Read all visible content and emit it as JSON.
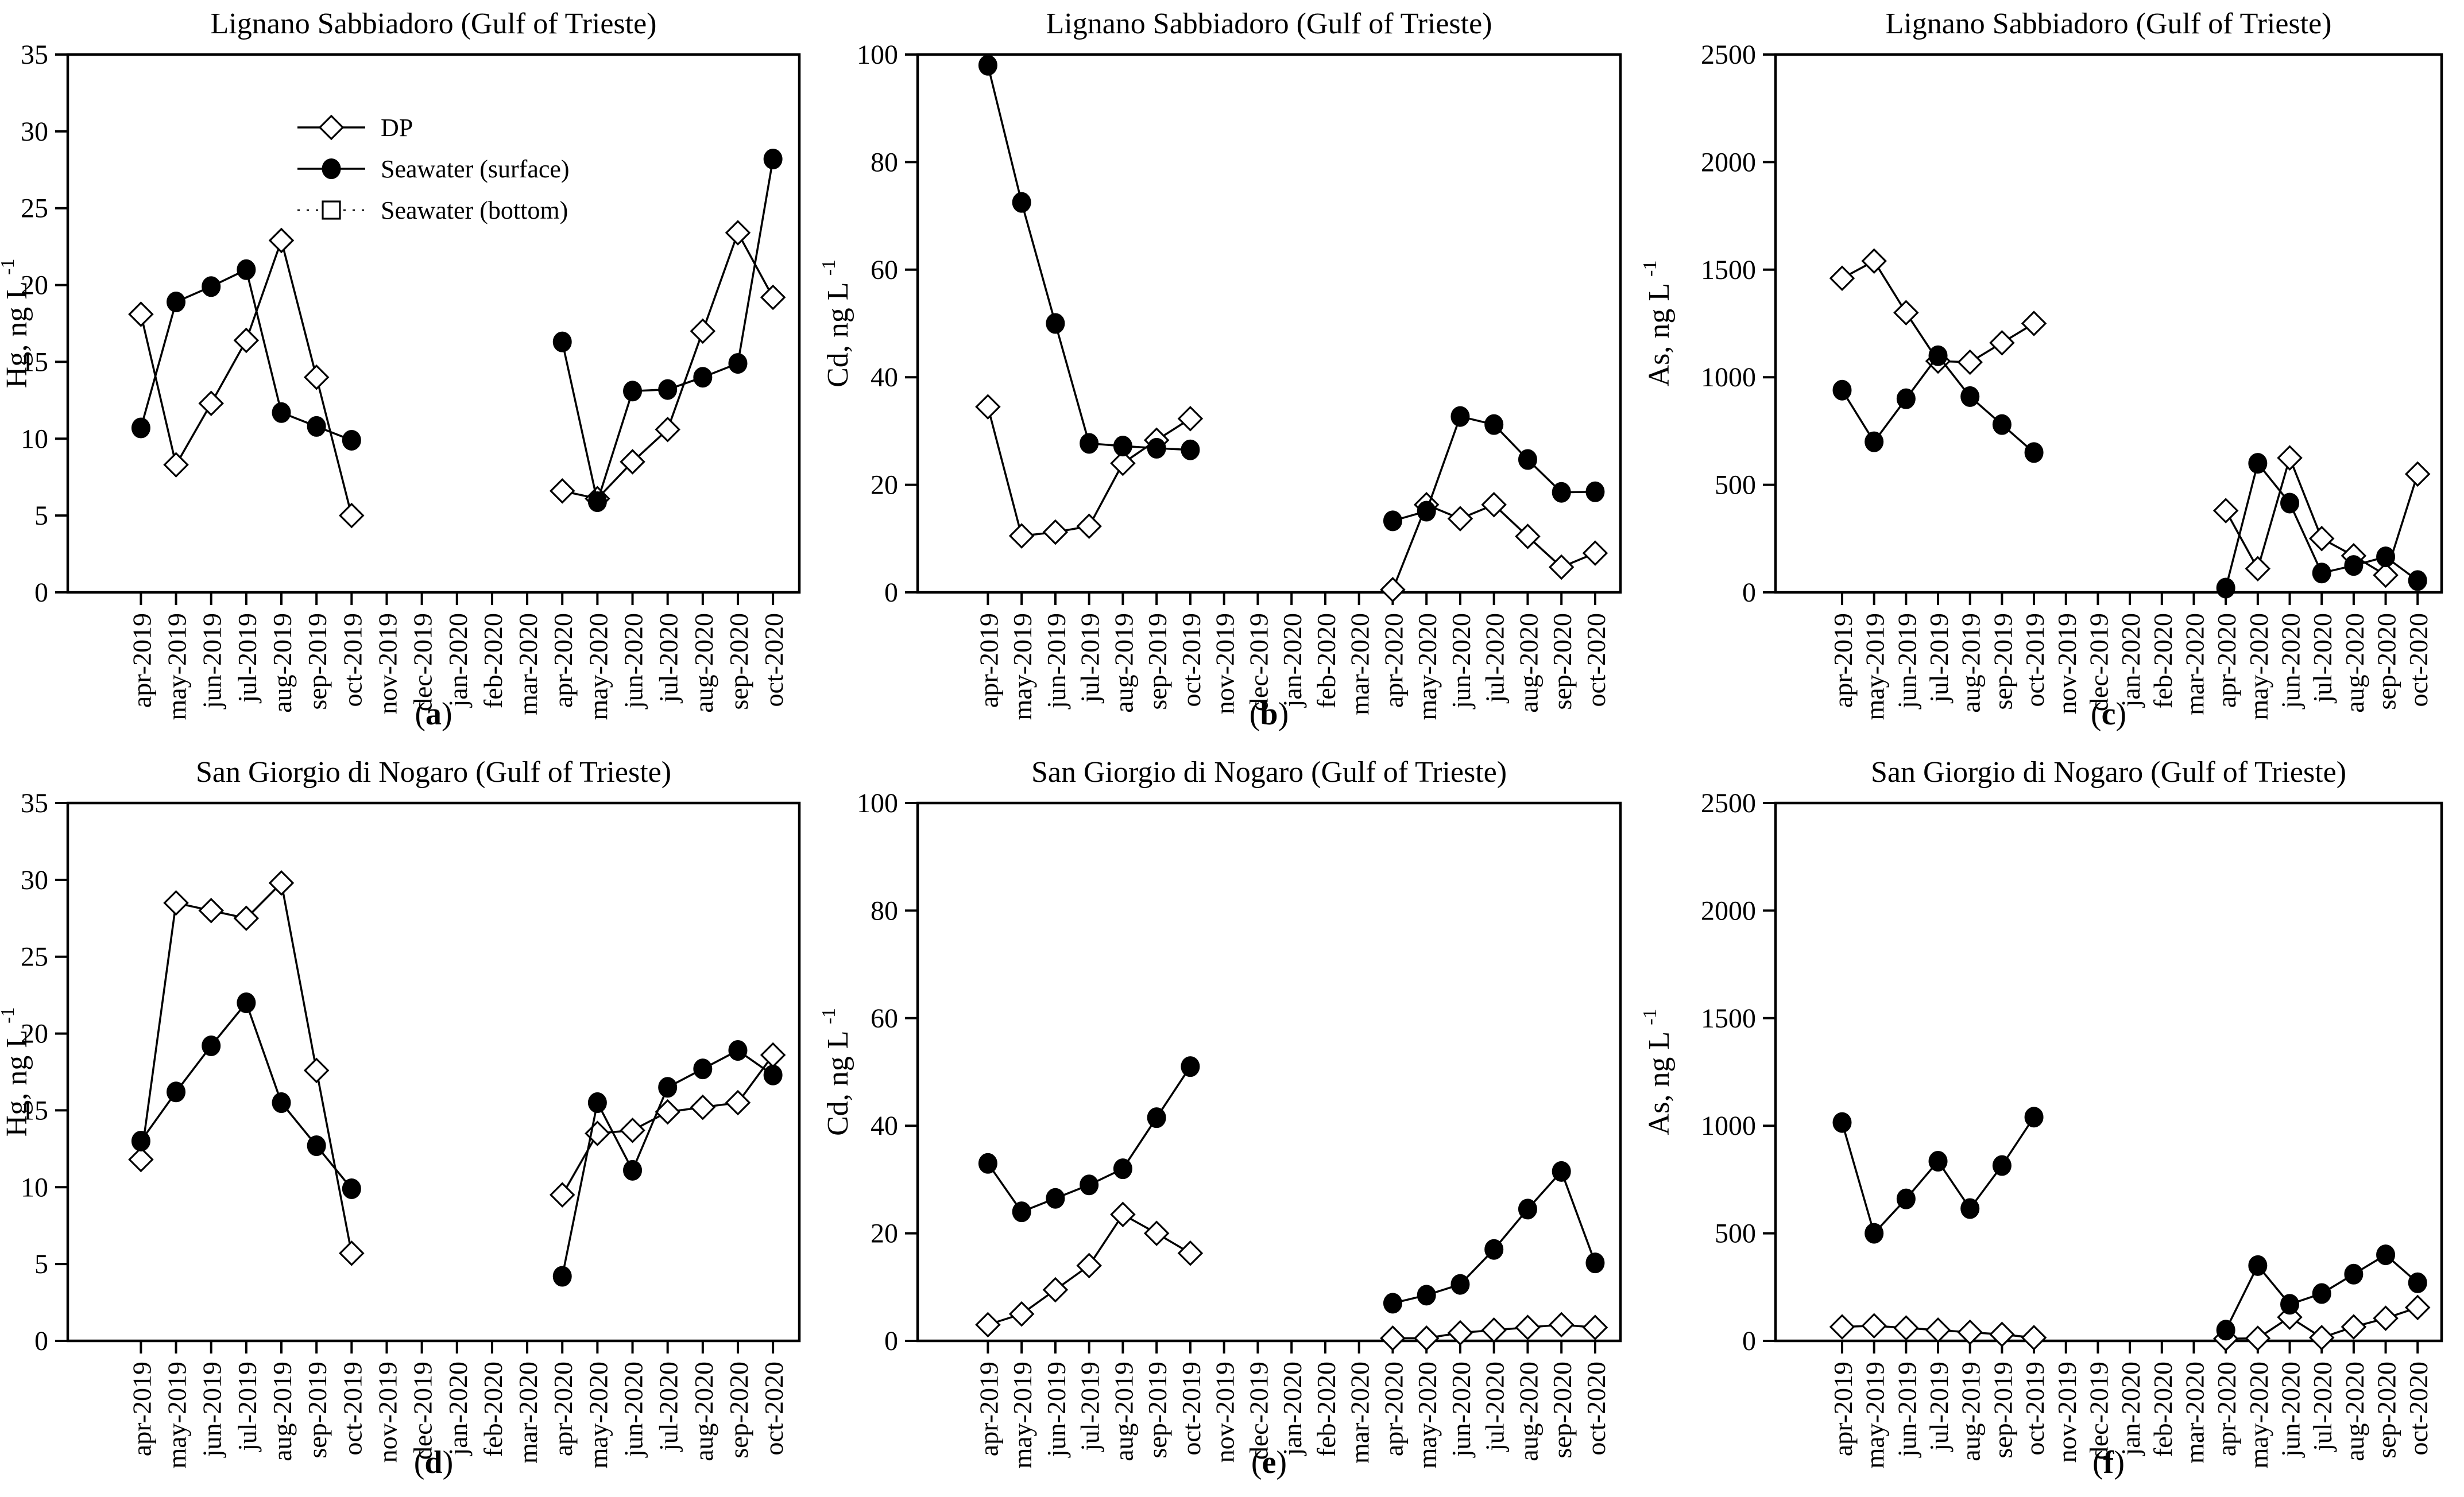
{
  "page": {
    "background": "#ffffff",
    "foreground": "#000000"
  },
  "punctuation": {
    "paren_open": "(",
    "paren_close": ")"
  },
  "legend": {
    "items": [
      {
        "label": "DP",
        "marker": "open-diamond",
        "line": "solid"
      },
      {
        "label": "Seawater (surface)",
        "marker": "filled-circle",
        "line": "solid"
      },
      {
        "label": "Seawater (bottom)",
        "marker": "open-square",
        "line": "dotted"
      }
    ]
  },
  "chart_data": [
    {
      "id": "a",
      "type": "line",
      "letter": "a",
      "title": "Lignano Sabbiadoro (Gulf of Trieste)",
      "xlabel": "",
      "ylabel": "Hg, ng L",
      "ylabel_sup": "-1",
      "ylim": [
        0,
        35
      ],
      "yticks": [
        "0",
        "5",
        "10",
        "15",
        "20",
        "25",
        "30",
        "35"
      ],
      "grid": false,
      "legend_visible": true,
      "margin_left": 118,
      "categories": [
        "apr-2019",
        "may-2019",
        "jun-2019",
        "jul-2019",
        "aug-2019",
        "sep-2019",
        "oct-2019",
        "nov-2019",
        "dec-2019",
        "jan-2020",
        "feb-2020",
        "mar-2020",
        "apr-2020",
        "may-2020",
        "jun-2020",
        "jul-2020",
        "aug-2020",
        "sep-2020",
        "oct-2020"
      ],
      "series": [
        {
          "name": "DP",
          "marker": "open-diamond",
          "line": "solid",
          "values": [
            18.1,
            8.3,
            12.3,
            16.4,
            22.9,
            14.0,
            5.0,
            null,
            null,
            null,
            null,
            null,
            6.6,
            6.1,
            8.5,
            10.6,
            17.0,
            23.4,
            19.2
          ]
        },
        {
          "name": "Seawater (surface)",
          "marker": "filled-circle",
          "line": "solid",
          "values": [
            10.7,
            18.9,
            19.9,
            21.0,
            11.7,
            10.8,
            9.9,
            null,
            null,
            null,
            null,
            null,
            16.3,
            5.9,
            13.1,
            13.2,
            14.0,
            14.9,
            28.2
          ]
        },
        {
          "name": "Seawater (bottom)",
          "marker": "open-square",
          "line": "dotted",
          "values": [
            null,
            null,
            null,
            null,
            null,
            null,
            null,
            null,
            null,
            null,
            null,
            null,
            null,
            null,
            null,
            null,
            null,
            null,
            null
          ]
        }
      ]
    },
    {
      "id": "b",
      "type": "line",
      "letter": "b",
      "title": "Lignano Sabbiadoro (Gulf of Trieste)",
      "xlabel": "",
      "ylabel": "Cd, ng L",
      "ylabel_sup": "-1",
      "ylim": [
        0,
        100
      ],
      "yticks": [
        "0",
        "20",
        "40",
        "60",
        "80",
        "100"
      ],
      "grid": false,
      "legend_visible": false,
      "margin_left": 168,
      "categories": [
        "apr-2019",
        "may-2019",
        "jun-2019",
        "jul-2019",
        "aug-2019",
        "sep-2019",
        "oct-2019",
        "nov-2019",
        "dec-2019",
        "jan-2020",
        "feb-2020",
        "mar-2020",
        "apr-2020",
        "may-2020",
        "jun-2020",
        "jul-2020",
        "aug-2020",
        "sep-2020",
        "oct-2020"
      ],
      "series": [
        {
          "name": "DP",
          "marker": "open-diamond",
          "line": "solid",
          "values": [
            34.5,
            10.5,
            11.2,
            12.3,
            24.0,
            28.3,
            32.3,
            null,
            null,
            null,
            null,
            null,
            0.5,
            16.3,
            13.7,
            16.3,
            10.4,
            4.7,
            7.3
          ]
        },
        {
          "name": "Seawater (surface)",
          "marker": "filled-circle",
          "line": "solid",
          "values": [
            98.0,
            72.5,
            50.0,
            27.7,
            27.2,
            26.8,
            26.5,
            null,
            null,
            null,
            null,
            null,
            13.3,
            15.1,
            32.7,
            31.2,
            24.7,
            18.6,
            18.7
          ]
        },
        {
          "name": "Seawater (bottom)",
          "marker": "open-square",
          "line": "dotted",
          "values": [
            null,
            null,
            null,
            null,
            null,
            null,
            null,
            null,
            null,
            null,
            null,
            null,
            null,
            null,
            null,
            null,
            null,
            null,
            null
          ]
        }
      ]
    },
    {
      "id": "c",
      "type": "line",
      "letter": "c",
      "title": "Lignano Sabbiadoro (Gulf of Trieste)",
      "xlabel": "",
      "ylabel": "As, ng L",
      "ylabel_sup": "-1",
      "ylim": [
        0,
        2500
      ],
      "yticks": [
        "0",
        "500",
        "1000",
        "1500",
        "2000",
        "2500"
      ],
      "grid": false,
      "legend_visible": false,
      "margin_left": 232,
      "categories": [
        "apr-2019",
        "may-2019",
        "jun-2019",
        "jul-2019",
        "aug-2019",
        "sep-2019",
        "oct-2019",
        "nov-2019",
        "dec-2019",
        "jan-2020",
        "feb-2020",
        "mar-2020",
        "apr-2020",
        "may-2020",
        "jun-2020",
        "jul-2020",
        "aug-2020",
        "sep-2020",
        "oct-2020"
      ],
      "series": [
        {
          "name": "DP",
          "marker": "open-diamond",
          "line": "solid",
          "values": [
            1460,
            1540,
            1300,
            1075,
            1070,
            1160,
            1250,
            null,
            null,
            null,
            null,
            null,
            380,
            110,
            625,
            250,
            170,
            80,
            550
          ]
        },
        {
          "name": "Seawater (surface)",
          "marker": "filled-circle",
          "line": "solid",
          "values": [
            940,
            700,
            900,
            1100,
            910,
            780,
            650,
            null,
            null,
            null,
            null,
            null,
            20,
            600,
            415,
            90,
            125,
            165,
            55
          ]
        },
        {
          "name": "Seawater (bottom)",
          "marker": "open-square",
          "line": "dotted",
          "values": [
            null,
            null,
            null,
            null,
            null,
            null,
            null,
            null,
            null,
            null,
            null,
            null,
            null,
            null,
            null,
            null,
            null,
            null,
            null
          ]
        }
      ]
    },
    {
      "id": "d",
      "type": "line",
      "letter": "d",
      "title": "San Giorgio di Nogaro (Gulf of Trieste)",
      "xlabel": "",
      "ylabel": "Hg, ng L",
      "ylabel_sup": "-1",
      "ylim": [
        0,
        35
      ],
      "yticks": [
        "0",
        "5",
        "10",
        "15",
        "20",
        "25",
        "30",
        "35"
      ],
      "grid": false,
      "legend_visible": false,
      "margin_left": 118,
      "categories": [
        "apr-2019",
        "may-2019",
        "jun-2019",
        "jul-2019",
        "aug-2019",
        "sep-2019",
        "oct-2019",
        "nov-2019",
        "dec-2019",
        "jan-2020",
        "feb-2020",
        "mar-2020",
        "apr-2020",
        "may-2020",
        "jun-2020",
        "jul-2020",
        "aug-2020",
        "sep-2020",
        "oct-2020"
      ],
      "series": [
        {
          "name": "DP",
          "marker": "open-diamond",
          "line": "solid",
          "values": [
            11.8,
            28.5,
            28.0,
            27.5,
            29.8,
            17.6,
            5.7,
            null,
            null,
            null,
            null,
            null,
            9.5,
            13.5,
            13.7,
            14.9,
            15.2,
            15.5,
            18.6
          ]
        },
        {
          "name": "Seawater (surface)",
          "marker": "filled-circle",
          "line": "solid",
          "values": [
            13.0,
            16.2,
            19.2,
            22.0,
            15.5,
            12.7,
            9.9,
            null,
            null,
            null,
            null,
            null,
            4.2,
            15.5,
            11.1,
            16.5,
            17.7,
            18.9,
            17.3
          ]
        },
        {
          "name": "Seawater (bottom)",
          "marker": "open-square",
          "line": "dotted",
          "values": [
            null,
            null,
            null,
            null,
            null,
            null,
            null,
            null,
            null,
            null,
            null,
            null,
            null,
            null,
            null,
            null,
            null,
            null,
            null
          ]
        }
      ]
    },
    {
      "id": "e",
      "type": "line",
      "letter": "e",
      "title": "San Giorgio di Nogaro (Gulf of Trieste)",
      "xlabel": "",
      "ylabel": "Cd, ng L",
      "ylabel_sup": "-1",
      "ylim": [
        0,
        100
      ],
      "yticks": [
        "0",
        "20",
        "40",
        "60",
        "80",
        "100"
      ],
      "grid": false,
      "legend_visible": false,
      "margin_left": 168,
      "categories": [
        "apr-2019",
        "may-2019",
        "jun-2019",
        "jul-2019",
        "aug-2019",
        "sep-2019",
        "oct-2019",
        "nov-2019",
        "dec-2019",
        "jan-2020",
        "feb-2020",
        "mar-2020",
        "apr-2020",
        "may-2020",
        "jun-2020",
        "jul-2020",
        "aug-2020",
        "sep-2020",
        "oct-2020"
      ],
      "series": [
        {
          "name": "DP",
          "marker": "open-diamond",
          "line": "solid",
          "values": [
            3.0,
            5.0,
            9.5,
            14.0,
            23.5,
            20.0,
            16.3,
            null,
            null,
            null,
            null,
            null,
            0.5,
            0.5,
            1.5,
            2.0,
            2.5,
            3.0,
            2.5
          ]
        },
        {
          "name": "Seawater (surface)",
          "marker": "filled-circle",
          "line": "solid",
          "values": [
            33.0,
            24.0,
            26.5,
            29.0,
            32.0,
            41.5,
            51.0,
            null,
            null,
            null,
            null,
            null,
            7.0,
            8.5,
            10.5,
            17.0,
            24.5,
            31.5,
            14.5
          ]
        },
        {
          "name": "Seawater (bottom)",
          "marker": "open-square",
          "line": "dotted",
          "values": [
            null,
            null,
            null,
            null,
            null,
            null,
            null,
            null,
            null,
            null,
            null,
            null,
            null,
            null,
            null,
            null,
            null,
            null,
            null
          ]
        }
      ]
    },
    {
      "id": "f",
      "type": "line",
      "letter": "f",
      "title": "San Giorgio di Nogaro (Gulf of Trieste)",
      "xlabel": "",
      "ylabel": "As, ng L",
      "ylabel_sup": "-1",
      "ylim": [
        0,
        2500
      ],
      "yticks": [
        "0",
        "500",
        "1000",
        "1500",
        "2000",
        "2500"
      ],
      "grid": false,
      "legend_visible": false,
      "margin_left": 232,
      "categories": [
        "apr-2019",
        "may-2019",
        "jun-2019",
        "jul-2019",
        "aug-2019",
        "sep-2019",
        "oct-2019",
        "nov-2019",
        "dec-2019",
        "jan-2020",
        "feb-2020",
        "mar-2020",
        "apr-2020",
        "may-2020",
        "jun-2020",
        "jul-2020",
        "aug-2020",
        "sep-2020",
        "oct-2020"
      ],
      "series": [
        {
          "name": "DP",
          "marker": "open-diamond",
          "line": "solid",
          "values": [
            65,
            70,
            60,
            50,
            40,
            30,
            15,
            null,
            null,
            null,
            null,
            null,
            10,
            12,
            110,
            15,
            65,
            105,
            155
          ]
        },
        {
          "name": "Seawater (surface)",
          "marker": "filled-circle",
          "line": "solid",
          "values": [
            1015,
            500,
            660,
            835,
            615,
            815,
            1040,
            null,
            null,
            null,
            null,
            null,
            50,
            350,
            170,
            220,
            310,
            400,
            270
          ]
        },
        {
          "name": "Seawater (bottom)",
          "marker": "open-square",
          "line": "dotted",
          "values": [
            null,
            null,
            null,
            null,
            null,
            null,
            null,
            null,
            null,
            null,
            null,
            null,
            null,
            null,
            null,
            null,
            null,
            null,
            null
          ]
        }
      ]
    }
  ]
}
